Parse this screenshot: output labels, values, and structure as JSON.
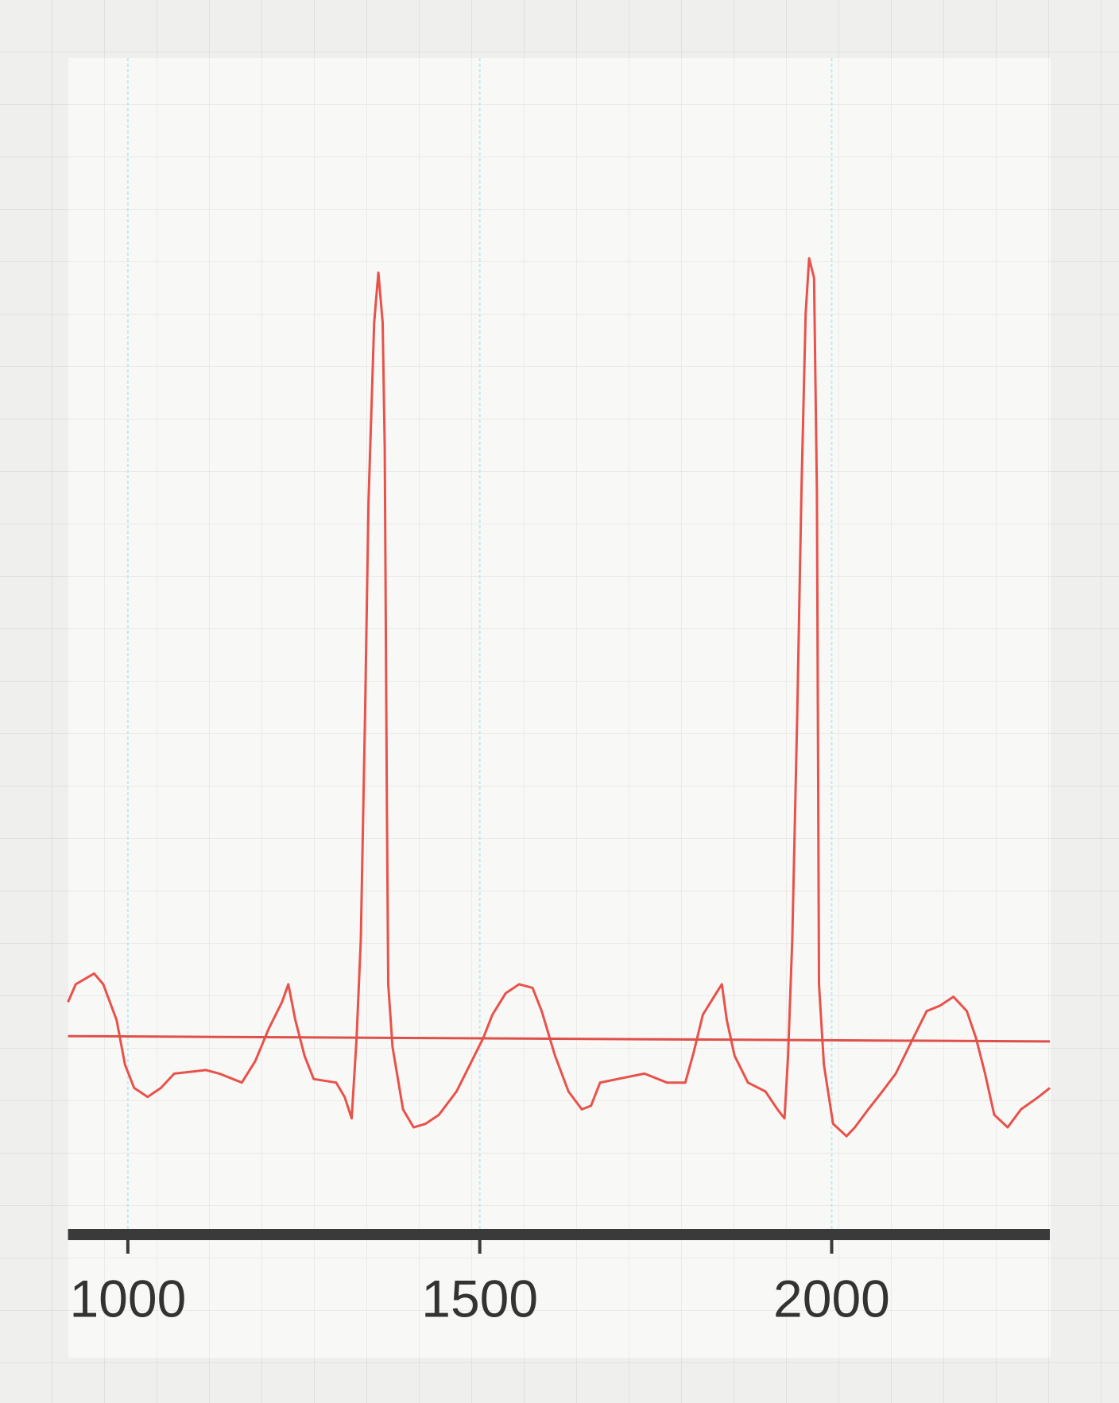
{
  "chart_data": {
    "type": "line",
    "xlim": [
      915,
      2310
    ],
    "xticks": [
      1000,
      1500,
      2000
    ],
    "ylim": [
      -1.1,
      5.48
    ],
    "grid": true,
    "series": [
      {
        "color": "#e8524a",
        "x": [
          915,
          926,
          952,
          965,
          984,
          996,
          1009,
          1028,
          1047,
          1066,
          1111,
          1130,
          1162,
          1181,
          1200,
          1219,
          1228,
          1238,
          1251,
          1264,
          1296,
          1308,
          1318,
          1325,
          1331,
          1337,
          1342,
          1350,
          1356,
          1362,
          1365,
          1368,
          1370,
          1376,
          1391,
          1406,
          1423,
          1442,
          1467,
          1486,
          1505,
          1518,
          1537,
          1556,
          1575,
          1588,
          1607,
          1626,
          1645,
          1658,
          1671,
          1696,
          1734,
          1766,
          1792,
          1804,
          1817,
          1836,
          1844,
          1851,
          1862,
          1881,
          1906,
          1923,
          1933,
          1938,
          1944,
          1951,
          1957,
          1963,
          1968,
          1975,
          1979,
          1981,
          1982,
          1989,
          2002,
          2021,
          2033,
          2052,
          2072,
          2091,
          2116,
          2135,
          2154,
          2173,
          2192,
          2205,
          2218,
          2231,
          2250,
          2269,
          2294,
          2310
        ],
        "values": [
          0.2,
          0.3,
          0.36,
          0.3,
          0.1,
          -0.15,
          -0.28,
          -0.33,
          -0.28,
          -0.2,
          -0.18,
          -0.2,
          -0.25,
          -0.13,
          0.05,
          0.2,
          0.3,
          0.1,
          -0.1,
          -0.23,
          -0.25,
          -0.33,
          -0.45,
          0,
          0.55,
          1.8,
          3,
          4,
          4.28,
          4,
          3.3,
          1.3,
          0.3,
          -0.05,
          -0.4,
          -0.5,
          -0.48,
          -0.43,
          -0.3,
          -0.15,
          0,
          0.13,
          0.25,
          0.3,
          0.28,
          0.15,
          -0.1,
          -0.3,
          -0.4,
          -0.38,
          -0.25,
          -0.23,
          -0.2,
          -0.25,
          -0.25,
          -0.08,
          0.13,
          0.25,
          0.3,
          0.1,
          -0.1,
          -0.25,
          -0.3,
          -0.4,
          -0.45,
          -0.1,
          0.55,
          1.8,
          3.05,
          4.05,
          4.36,
          4.25,
          3.05,
          1.3,
          0.3,
          -0.15,
          -0.48,
          -0.55,
          -0.5,
          -0.4,
          -0.3,
          -0.2,
          0,
          0.15,
          0.18,
          0.23,
          0.15,
          0,
          -0.2,
          -0.43,
          -0.5,
          -0.4,
          -0.33,
          -0.28
        ]
      },
      {
        "color": "#e0504a",
        "x": [
          915,
          2310
        ],
        "values": [
          0.01,
          -0.02
        ]
      }
    ]
  }
}
